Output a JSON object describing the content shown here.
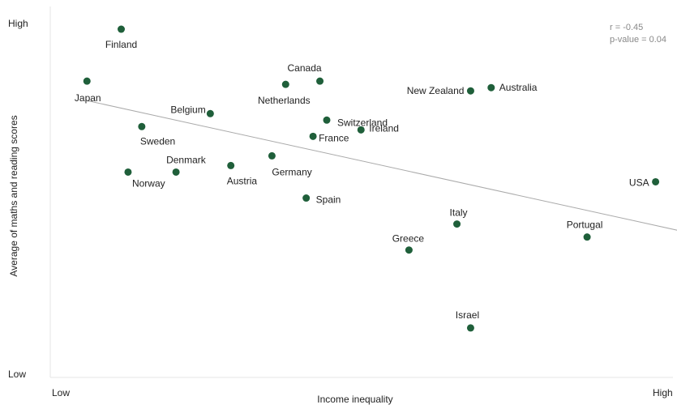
{
  "chart_data": {
    "type": "scatter",
    "xlabel": "Income inequality",
    "ylabel": "Average of maths and reading scores",
    "x_tick_labels": {
      "low": "Low",
      "high": "High"
    },
    "y_tick_labels": {
      "low": "Low",
      "high": "High"
    },
    "xlim": [
      0,
      1
    ],
    "ylim": [
      0,
      1
    ],
    "grid": false,
    "legend": "none",
    "annotations": {
      "r": "r = -0.45",
      "p_value": "p-value = 0.04"
    },
    "trendline": {
      "x": [
        0.05,
        1.0
      ],
      "y": [
        0.77,
        0.33
      ]
    },
    "marker_color": "#1f5f3a",
    "trendline_color": "#aaaaaa",
    "points": [
      {
        "label": "Finland",
        "x": 0.1,
        "y": 0.99
      },
      {
        "label": "Japan",
        "x": 0.05,
        "y": 0.83
      },
      {
        "label": "Canada",
        "x": 0.39,
        "y": 0.83
      },
      {
        "label": "Netherlands",
        "x": 0.34,
        "y": 0.82
      },
      {
        "label": "New Zealand",
        "x": 0.61,
        "y": 0.8
      },
      {
        "label": "Australia",
        "x": 0.64,
        "y": 0.81
      },
      {
        "label": "Belgium",
        "x": 0.23,
        "y": 0.73
      },
      {
        "label": "Switzerland",
        "x": 0.4,
        "y": 0.71
      },
      {
        "label": "Ireland",
        "x": 0.45,
        "y": 0.68
      },
      {
        "label": "France",
        "x": 0.38,
        "y": 0.66
      },
      {
        "label": "Sweden",
        "x": 0.13,
        "y": 0.69
      },
      {
        "label": "Germany",
        "x": 0.32,
        "y": 0.6
      },
      {
        "label": "Denmark",
        "x": 0.18,
        "y": 0.55
      },
      {
        "label": "Austria",
        "x": 0.26,
        "y": 0.57
      },
      {
        "label": "Norway",
        "x": 0.11,
        "y": 0.55
      },
      {
        "label": "USA",
        "x": 0.88,
        "y": 0.52
      },
      {
        "label": "Spain",
        "x": 0.37,
        "y": 0.47
      },
      {
        "label": "Italy",
        "x": 0.59,
        "y": 0.39
      },
      {
        "label": "Portugal",
        "x": 0.78,
        "y": 0.35
      },
      {
        "label": "Greece",
        "x": 0.52,
        "y": 0.31
      },
      {
        "label": "Israel",
        "x": 0.61,
        "y": 0.07
      }
    ]
  }
}
